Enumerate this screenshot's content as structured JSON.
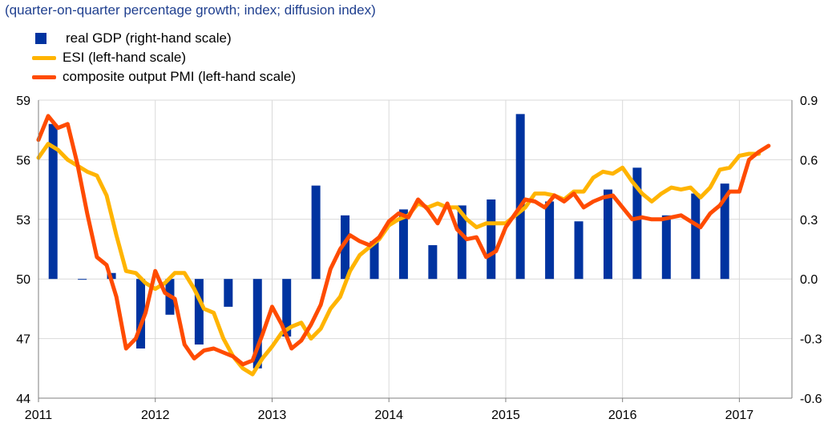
{
  "chart_data": {
    "type": "bar+line",
    "subtitle": "(quarter-on-quarter percentage growth; index; diffusion index)",
    "left_axis": {
      "ylim": [
        44,
        59
      ],
      "ticks": [
        "44",
        "47",
        "50",
        "53",
        "56",
        "59"
      ]
    },
    "right_axis": {
      "ylim": [
        -0.6,
        0.9
      ],
      "ticks": [
        "-0.6",
        "-0.3",
        "0.0",
        "0.3",
        "0.6",
        "0.9"
      ]
    },
    "x_axis": {
      "xlim": [
        2011.0,
        2017.45
      ],
      "ticks": [
        "2011",
        "2012",
        "2013",
        "2014",
        "2015",
        "2016",
        "2017"
      ]
    },
    "grid": true,
    "legend_position": "top-left",
    "colors": {
      "gdp": "#0033a0",
      "esi": "#ffb400",
      "pmi": "#ff4b00",
      "grid": "#d9d9d9",
      "subtitle": "#1f3f8f"
    },
    "series": [
      {
        "name": "real GDP (right-hand scale)",
        "type": "bar",
        "axis": "right",
        "points": [
          {
            "x": 2011.125,
            "y": 0.78
          },
          {
            "x": 2011.375,
            "y": 0.0
          },
          {
            "x": 2011.625,
            "y": 0.03
          },
          {
            "x": 2011.875,
            "y": -0.35
          },
          {
            "x": 2012.125,
            "y": -0.18
          },
          {
            "x": 2012.375,
            "y": -0.33
          },
          {
            "x": 2012.625,
            "y": -0.14
          },
          {
            "x": 2012.875,
            "y": -0.45
          },
          {
            "x": 2013.125,
            "y": -0.29
          },
          {
            "x": 2013.375,
            "y": 0.47
          },
          {
            "x": 2013.625,
            "y": 0.32
          },
          {
            "x": 2013.875,
            "y": 0.19
          },
          {
            "x": 2014.125,
            "y": 0.35
          },
          {
            "x": 2014.375,
            "y": 0.17
          },
          {
            "x": 2014.625,
            "y": 0.37
          },
          {
            "x": 2014.875,
            "y": 0.4
          },
          {
            "x": 2015.125,
            "y": 0.83
          },
          {
            "x": 2015.375,
            "y": 0.39
          },
          {
            "x": 2015.625,
            "y": 0.29
          },
          {
            "x": 2015.875,
            "y": 0.45
          },
          {
            "x": 2016.125,
            "y": 0.56
          },
          {
            "x": 2016.375,
            "y": 0.32
          },
          {
            "x": 2016.625,
            "y": 0.43
          },
          {
            "x": 2016.875,
            "y": 0.48
          }
        ]
      },
      {
        "name": "ESI (left-hand scale)",
        "type": "line",
        "axis": "left",
        "points": [
          {
            "x": 2011.0,
            "y": 56.1
          },
          {
            "x": 2011.083,
            "y": 56.8
          },
          {
            "x": 2011.167,
            "y": 56.5
          },
          {
            "x": 2011.25,
            "y": 56.0
          },
          {
            "x": 2011.333,
            "y": 55.7
          },
          {
            "x": 2011.417,
            "y": 55.4
          },
          {
            "x": 2011.5,
            "y": 55.2
          },
          {
            "x": 2011.583,
            "y": 54.2
          },
          {
            "x": 2011.667,
            "y": 52.2
          },
          {
            "x": 2011.75,
            "y": 50.4
          },
          {
            "x": 2011.833,
            "y": 50.3
          },
          {
            "x": 2011.917,
            "y": 49.8
          },
          {
            "x": 2012.0,
            "y": 49.5
          },
          {
            "x": 2012.083,
            "y": 49.8
          },
          {
            "x": 2012.167,
            "y": 50.3
          },
          {
            "x": 2012.25,
            "y": 50.3
          },
          {
            "x": 2012.333,
            "y": 49.5
          },
          {
            "x": 2012.417,
            "y": 48.5
          },
          {
            "x": 2012.5,
            "y": 48.3
          },
          {
            "x": 2012.583,
            "y": 47.0
          },
          {
            "x": 2012.667,
            "y": 46.1
          },
          {
            "x": 2012.75,
            "y": 45.5
          },
          {
            "x": 2012.833,
            "y": 45.2
          },
          {
            "x": 2012.917,
            "y": 46.0
          },
          {
            "x": 2013.0,
            "y": 46.6
          },
          {
            "x": 2013.083,
            "y": 47.3
          },
          {
            "x": 2013.167,
            "y": 47.6
          },
          {
            "x": 2013.25,
            "y": 47.8
          },
          {
            "x": 2013.333,
            "y": 47.0
          },
          {
            "x": 2013.417,
            "y": 47.5
          },
          {
            "x": 2013.5,
            "y": 48.5
          },
          {
            "x": 2013.583,
            "y": 49.1
          },
          {
            "x": 2013.667,
            "y": 50.4
          },
          {
            "x": 2013.75,
            "y": 51.2
          },
          {
            "x": 2013.833,
            "y": 51.6
          },
          {
            "x": 2013.917,
            "y": 52.0
          },
          {
            "x": 2014.0,
            "y": 52.7
          },
          {
            "x": 2014.083,
            "y": 53.0
          },
          {
            "x": 2014.167,
            "y": 53.2
          },
          {
            "x": 2014.25,
            "y": 53.8
          },
          {
            "x": 2014.333,
            "y": 53.6
          },
          {
            "x": 2014.417,
            "y": 53.8
          },
          {
            "x": 2014.5,
            "y": 53.6
          },
          {
            "x": 2014.583,
            "y": 53.6
          },
          {
            "x": 2014.667,
            "y": 53.0
          },
          {
            "x": 2014.75,
            "y": 52.6
          },
          {
            "x": 2014.833,
            "y": 52.8
          },
          {
            "x": 2014.917,
            "y": 52.8
          },
          {
            "x": 2015.0,
            "y": 52.8
          },
          {
            "x": 2015.083,
            "y": 53.2
          },
          {
            "x": 2015.167,
            "y": 53.6
          },
          {
            "x": 2015.25,
            "y": 54.3
          },
          {
            "x": 2015.333,
            "y": 54.3
          },
          {
            "x": 2015.417,
            "y": 54.2
          },
          {
            "x": 2015.5,
            "y": 54.0
          },
          {
            "x": 2015.583,
            "y": 54.4
          },
          {
            "x": 2015.667,
            "y": 54.4
          },
          {
            "x": 2015.75,
            "y": 55.1
          },
          {
            "x": 2015.833,
            "y": 55.4
          },
          {
            "x": 2015.917,
            "y": 55.3
          },
          {
            "x": 2016.0,
            "y": 55.6
          },
          {
            "x": 2016.083,
            "y": 54.9
          },
          {
            "x": 2016.167,
            "y": 54.3
          },
          {
            "x": 2016.25,
            "y": 53.9
          },
          {
            "x": 2016.333,
            "y": 54.3
          },
          {
            "x": 2016.417,
            "y": 54.6
          },
          {
            "x": 2016.5,
            "y": 54.5
          },
          {
            "x": 2016.583,
            "y": 54.6
          },
          {
            "x": 2016.667,
            "y": 54.1
          },
          {
            "x": 2016.75,
            "y": 54.6
          },
          {
            "x": 2016.833,
            "y": 55.5
          },
          {
            "x": 2016.917,
            "y": 55.6
          },
          {
            "x": 2017.0,
            "y": 56.2
          },
          {
            "x": 2017.083,
            "y": 56.3
          },
          {
            "x": 2017.167,
            "y": 56.3
          }
        ]
      },
      {
        "name": "composite output PMI (left-hand scale)",
        "type": "line",
        "axis": "left",
        "points": [
          {
            "x": 2011.0,
            "y": 57.0
          },
          {
            "x": 2011.083,
            "y": 58.2
          },
          {
            "x": 2011.167,
            "y": 57.6
          },
          {
            "x": 2011.25,
            "y": 57.8
          },
          {
            "x": 2011.333,
            "y": 55.8
          },
          {
            "x": 2011.417,
            "y": 53.3
          },
          {
            "x": 2011.5,
            "y": 51.1
          },
          {
            "x": 2011.583,
            "y": 50.7
          },
          {
            "x": 2011.667,
            "y": 49.1
          },
          {
            "x": 2011.75,
            "y": 46.5
          },
          {
            "x": 2011.833,
            "y": 47.0
          },
          {
            "x": 2011.917,
            "y": 48.3
          },
          {
            "x": 2012.0,
            "y": 50.4
          },
          {
            "x": 2012.083,
            "y": 49.3
          },
          {
            "x": 2012.167,
            "y": 49.0
          },
          {
            "x": 2012.25,
            "y": 46.7
          },
          {
            "x": 2012.333,
            "y": 46.0
          },
          {
            "x": 2012.417,
            "y": 46.4
          },
          {
            "x": 2012.5,
            "y": 46.5
          },
          {
            "x": 2012.583,
            "y": 46.3
          },
          {
            "x": 2012.667,
            "y": 46.1
          },
          {
            "x": 2012.75,
            "y": 45.7
          },
          {
            "x": 2012.833,
            "y": 45.9
          },
          {
            "x": 2012.917,
            "y": 47.2
          },
          {
            "x": 2013.0,
            "y": 48.6
          },
          {
            "x": 2013.083,
            "y": 47.7
          },
          {
            "x": 2013.167,
            "y": 46.5
          },
          {
            "x": 2013.25,
            "y": 46.9
          },
          {
            "x": 2013.333,
            "y": 47.7
          },
          {
            "x": 2013.417,
            "y": 48.7
          },
          {
            "x": 2013.5,
            "y": 50.5
          },
          {
            "x": 2013.583,
            "y": 51.5
          },
          {
            "x": 2013.667,
            "y": 52.2
          },
          {
            "x": 2013.75,
            "y": 51.9
          },
          {
            "x": 2013.833,
            "y": 51.7
          },
          {
            "x": 2013.917,
            "y": 52.1
          },
          {
            "x": 2014.0,
            "y": 52.9
          },
          {
            "x": 2014.083,
            "y": 53.3
          },
          {
            "x": 2014.167,
            "y": 53.1
          },
          {
            "x": 2014.25,
            "y": 54.0
          },
          {
            "x": 2014.333,
            "y": 53.5
          },
          {
            "x": 2014.417,
            "y": 52.8
          },
          {
            "x": 2014.5,
            "y": 53.8
          },
          {
            "x": 2014.583,
            "y": 52.5
          },
          {
            "x": 2014.667,
            "y": 52.0
          },
          {
            "x": 2014.75,
            "y": 52.1
          },
          {
            "x": 2014.833,
            "y": 51.1
          },
          {
            "x": 2014.917,
            "y": 51.4
          },
          {
            "x": 2015.0,
            "y": 52.6
          },
          {
            "x": 2015.083,
            "y": 53.3
          },
          {
            "x": 2015.167,
            "y": 54.0
          },
          {
            "x": 2015.25,
            "y": 53.9
          },
          {
            "x": 2015.333,
            "y": 53.6
          },
          {
            "x": 2015.417,
            "y": 54.2
          },
          {
            "x": 2015.5,
            "y": 53.9
          },
          {
            "x": 2015.583,
            "y": 54.3
          },
          {
            "x": 2015.667,
            "y": 53.6
          },
          {
            "x": 2015.75,
            "y": 53.9
          },
          {
            "x": 2015.833,
            "y": 54.1
          },
          {
            "x": 2015.917,
            "y": 54.2
          },
          {
            "x": 2016.0,
            "y": 53.6
          },
          {
            "x": 2016.083,
            "y": 53.0
          },
          {
            "x": 2016.167,
            "y": 53.1
          },
          {
            "x": 2016.25,
            "y": 53.0
          },
          {
            "x": 2016.333,
            "y": 53.0
          },
          {
            "x": 2016.417,
            "y": 53.1
          },
          {
            "x": 2016.5,
            "y": 53.2
          },
          {
            "x": 2016.583,
            "y": 52.9
          },
          {
            "x": 2016.667,
            "y": 52.6
          },
          {
            "x": 2016.75,
            "y": 53.3
          },
          {
            "x": 2016.833,
            "y": 53.7
          },
          {
            "x": 2016.917,
            "y": 54.4
          },
          {
            "x": 2017.0,
            "y": 54.4
          },
          {
            "x": 2017.083,
            "y": 56.0
          },
          {
            "x": 2017.167,
            "y": 56.4
          },
          {
            "x": 2017.25,
            "y": 56.7
          }
        ]
      }
    ]
  }
}
